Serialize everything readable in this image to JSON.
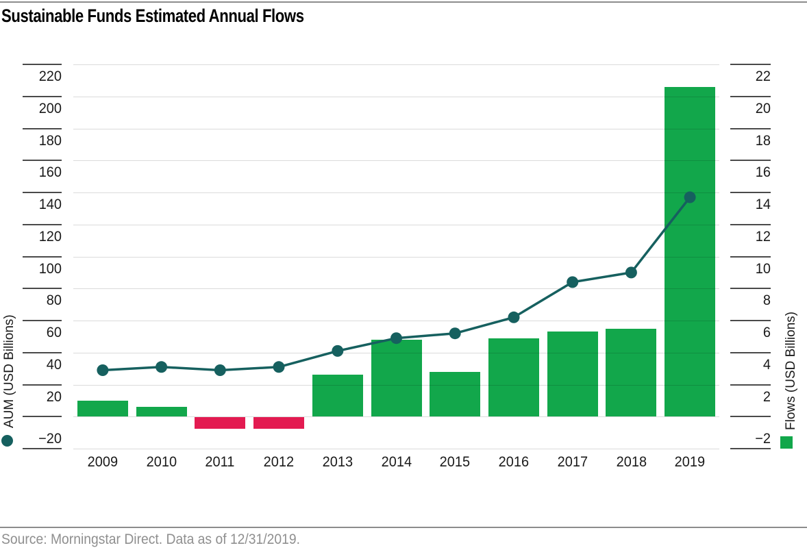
{
  "title": "Sustainable Funds Estimated Annual Flows",
  "footer": {
    "source": "Source: Morningstar Direct. Data as of 12/31/2019."
  },
  "chart_data": {
    "type": "combo-bar-line",
    "categories": [
      "2009",
      "2010",
      "2011",
      "2012",
      "2013",
      "2014",
      "2015",
      "2016",
      "2017",
      "2018",
      "2019"
    ],
    "series": [
      {
        "name": "Flows (USD Billions)",
        "type": "bar",
        "axis": "right",
        "values": [
          1.0,
          0.6,
          -0.7,
          -0.7,
          2.6,
          4.8,
          2.8,
          4.9,
          5.3,
          5.5,
          20.6
        ],
        "positive_color": "#12A74B",
        "negative_color": "#E31B51"
      },
      {
        "name": "AUM (USD Billions)",
        "type": "line",
        "axis": "left",
        "values": [
          29,
          31,
          29,
          31,
          41,
          49,
          52,
          62,
          84,
          90,
          137
        ],
        "color": "#16605F"
      }
    ],
    "axes": {
      "left": {
        "title": "AUM (USD Billions)",
        "min": -20,
        "max": 220,
        "step": 20,
        "zero_unlabeled": true
      },
      "right": {
        "title": "Flows (USD Billions)",
        "min": -2,
        "max": 22,
        "step": 2,
        "zero_unlabeled": true
      }
    },
    "grid": true,
    "legend": [
      {
        "label": "AUM (USD Billions)",
        "marker": "circle",
        "color": "#16605F"
      },
      {
        "label": "Flows (USD Billions)",
        "marker": "square",
        "color": "#12A74B"
      }
    ]
  }
}
